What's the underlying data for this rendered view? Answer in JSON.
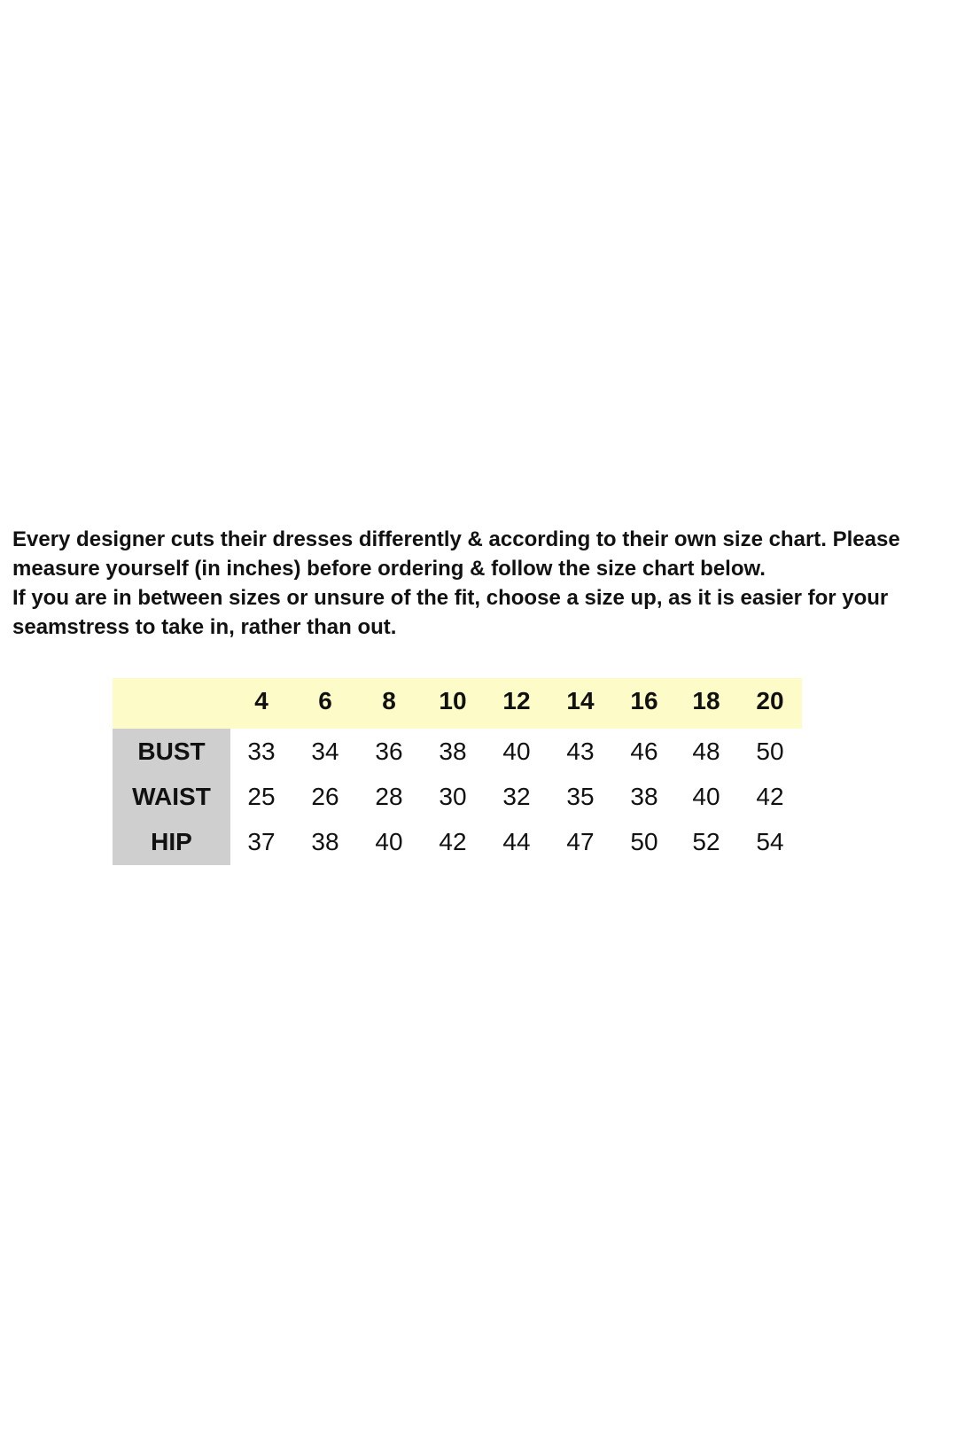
{
  "intro": {
    "paragraph1": "Every designer cuts their dresses differently & according to their own size chart. Please measure yourself (in inches) before ordering & follow the size chart below.",
    "paragraph2": "If you are in between sizes or unsure of the fit, choose a size up, as it is easier for your seamstress to take in, rather than out."
  },
  "size_chart": {
    "header_color": "#fdfbc8",
    "label_color": "#cfcfcf",
    "sizes": [
      "4",
      "6",
      "8",
      "10",
      "12",
      "14",
      "16",
      "18",
      "20"
    ],
    "rows": [
      {
        "label": "BUST",
        "values": [
          "33",
          "34",
          "36",
          "38",
          "40",
          "43",
          "46",
          "48",
          "50"
        ]
      },
      {
        "label": "WAIST",
        "values": [
          "25",
          "26",
          "28",
          "30",
          "32",
          "35",
          "38",
          "40",
          "42"
        ]
      },
      {
        "label": "HIP",
        "values": [
          "37",
          "38",
          "40",
          "42",
          "44",
          "47",
          "50",
          "52",
          "54"
        ]
      }
    ]
  }
}
